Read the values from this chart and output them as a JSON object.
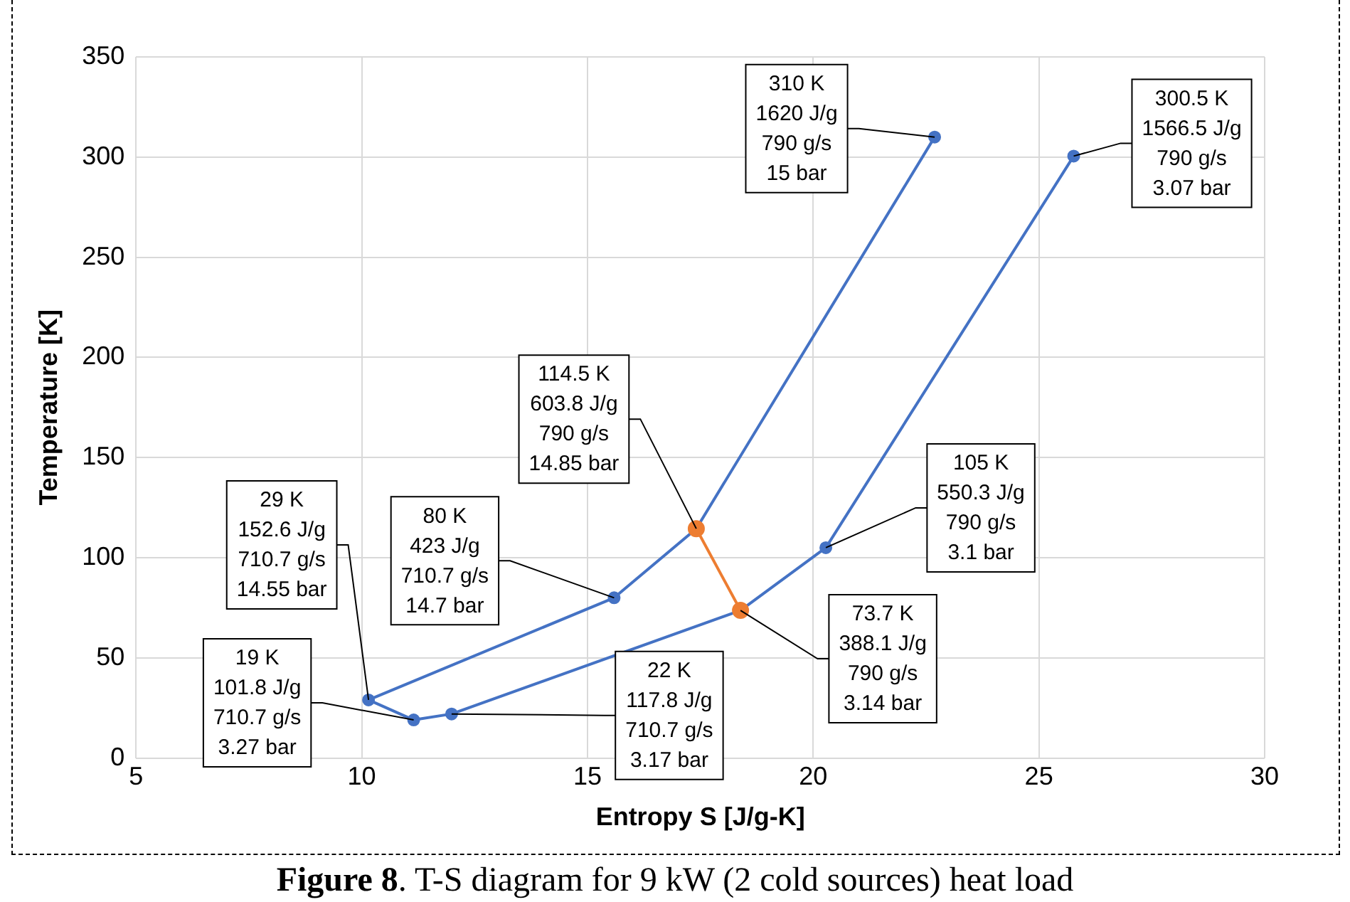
{
  "chart_data": {
    "type": "line",
    "xlabel": "Entropy S [J/g-K]",
    "ylabel": "Temperature [K]",
    "xlim": [
      5,
      30
    ],
    "xticks": [
      5,
      10,
      15,
      20,
      25,
      30
    ],
    "ylim": [
      0,
      350
    ],
    "yticks": [
      0,
      50,
      100,
      150,
      200,
      250,
      300,
      350
    ],
    "grid": true,
    "legend": false,
    "marker": "circle",
    "line_style": "solid",
    "series": [
      {
        "color": "#4472c4",
        "x": [
          22.69,
          17.41,
          15.59,
          10.15,
          11.15,
          11.99,
          18.39,
          20.28,
          25.77
        ],
        "values": [
          310,
          114.5,
          80,
          29,
          19,
          22,
          73.7,
          105,
          300.5
        ]
      },
      {
        "color": "#ed7d31",
        "x": [
          17.41,
          18.39
        ],
        "values": [
          114.5,
          73.7
        ]
      }
    ],
    "annotations": [
      {
        "text": "310 K\n1620 J/g\n790 g/s\n15 bar",
        "x": 22.69,
        "y": 310
      },
      {
        "text": "300.5 K\n1566.5 J/g\n790 g/s\n3.07 bar",
        "x": 25.77,
        "y": 300.5
      },
      {
        "text": "114.5 K\n603.8 J/g\n790 g/s\n14.85 bar",
        "x": 17.41,
        "y": 114.5
      },
      {
        "text": "105 K\n550.3 J/g\n790 g/s\n3.1 bar",
        "x": 20.28,
        "y": 105
      },
      {
        "text": "29 K\n152.6 J/g\n710.7 g/s\n14.55 bar",
        "x": 10.15,
        "y": 29
      },
      {
        "text": "80 K\n423 J/g\n710.7 g/s\n14.7 bar",
        "x": 15.59,
        "y": 80
      },
      {
        "text": "19 K\n101.8 J/g\n710.7 g/s\n3.27 bar",
        "x": 11.15,
        "y": 19
      },
      {
        "text": "22 K\n117.8 J/g\n710.7 g/s\n3.17 bar",
        "x": 11.99,
        "y": 22
      },
      {
        "text": "73.7 K\n388.1 J/g\n790 g/s\n3.14 bar",
        "x": 18.39,
        "y": 73.7
      },
      "Figure 8. T-S diagram for 9 kW (2 cold sources) heat load"
    ]
  }
}
